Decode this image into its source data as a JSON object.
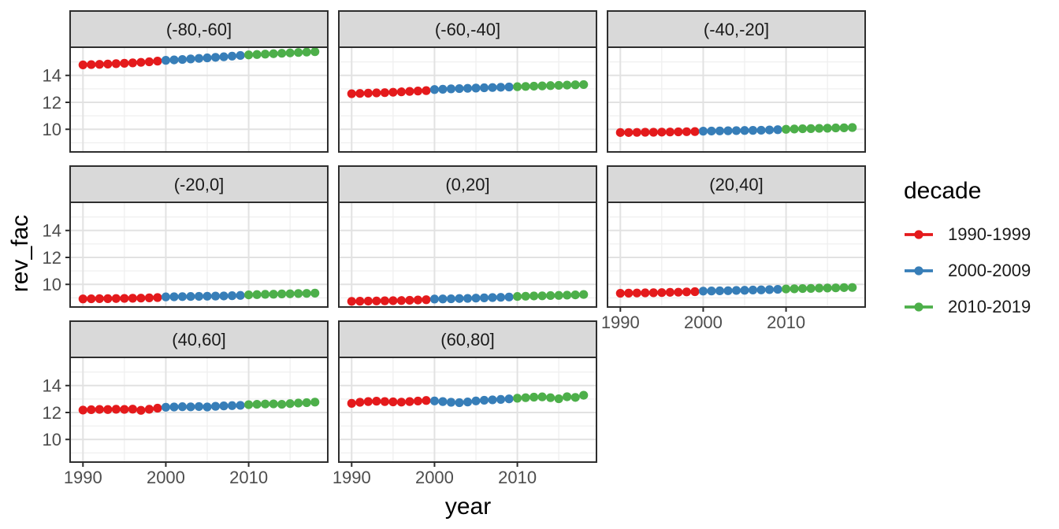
{
  "chart_data": {
    "type": "scatter",
    "title": "",
    "xlabel": "year",
    "ylabel": "rev_fac",
    "x": [
      1990,
      1991,
      1992,
      1993,
      1994,
      1995,
      1996,
      1997,
      1998,
      1999,
      2000,
      2001,
      2002,
      2003,
      2004,
      2005,
      2006,
      2007,
      2008,
      2009,
      2010,
      2011,
      2012,
      2013,
      2014,
      2015,
      2016,
      2017,
      2018
    ],
    "x_ticks": [
      1990,
      2000,
      2010
    ],
    "x_minor_ticks": [
      1995,
      2005,
      2015
    ],
    "y_ticks": [
      10,
      12,
      14
    ],
    "y_minor_ticks": [
      9,
      11,
      13,
      15
    ],
    "xlim": [
      1988.45,
      2019.55
    ],
    "ylim": [
      8.32,
      16.09
    ],
    "grid": "major+minor",
    "legend_position": "right",
    "legend_title": "decade",
    "series": [
      {
        "name": "1990-1999",
        "color": "#E41A1C",
        "from": 1990,
        "to": 1999
      },
      {
        "name": "2000-2009",
        "color": "#377EB8",
        "from": 2000,
        "to": 2009
      },
      {
        "name": "2010-2019",
        "color": "#4DAF4A",
        "from": 2010,
        "to": 2019
      }
    ],
    "facets": [
      {
        "label": "(-80,-60]",
        "values": [
          14.78,
          14.8,
          14.82,
          14.84,
          14.87,
          14.9,
          14.93,
          14.97,
          15.01,
          15.06,
          15.12,
          15.15,
          15.18,
          15.22,
          15.26,
          15.3,
          15.34,
          15.38,
          15.43,
          15.48,
          15.52,
          15.55,
          15.58,
          15.61,
          15.64,
          15.67,
          15.7,
          15.73,
          15.76
        ]
      },
      {
        "label": "(-60,-40]",
        "values": [
          12.64,
          12.66,
          12.68,
          12.7,
          12.72,
          12.75,
          12.78,
          12.81,
          12.84,
          12.87,
          12.95,
          12.97,
          13.0,
          13.02,
          13.04,
          13.06,
          13.08,
          13.1,
          13.12,
          13.14,
          13.16,
          13.18,
          13.2,
          13.22,
          13.24,
          13.26,
          13.28,
          13.3,
          13.32
        ]
      },
      {
        "label": "(-40,-20]",
        "values": [
          9.76,
          9.76,
          9.77,
          9.78,
          9.78,
          9.79,
          9.8,
          9.81,
          9.82,
          9.83,
          9.86,
          9.87,
          9.88,
          9.89,
          9.9,
          9.91,
          9.92,
          9.93,
          9.95,
          9.97,
          10.0,
          10.02,
          10.04,
          10.05,
          10.07,
          10.08,
          10.1,
          10.11,
          10.13
        ]
      },
      {
        "label": "(-20,0]",
        "values": [
          8.92,
          8.93,
          8.94,
          8.94,
          8.95,
          8.96,
          8.97,
          8.98,
          9.0,
          9.02,
          9.07,
          9.08,
          9.09,
          9.1,
          9.11,
          9.12,
          9.13,
          9.14,
          9.16,
          9.18,
          9.22,
          9.24,
          9.26,
          9.27,
          9.29,
          9.3,
          9.32,
          9.33,
          9.35
        ]
      },
      {
        "label": "(0,20]",
        "values": [
          8.74,
          8.75,
          8.76,
          8.77,
          8.78,
          8.79,
          8.8,
          8.82,
          8.84,
          8.86,
          8.91,
          8.92,
          8.93,
          8.95,
          8.96,
          8.98,
          9.0,
          9.02,
          9.04,
          9.06,
          9.1,
          9.12,
          9.14,
          9.15,
          9.17,
          9.18,
          9.2,
          9.22,
          9.25
        ]
      },
      {
        "label": "(20,40]",
        "values": [
          9.34,
          9.35,
          9.36,
          9.37,
          9.38,
          9.39,
          9.41,
          9.42,
          9.44,
          9.46,
          9.5,
          9.51,
          9.52,
          9.53,
          9.55,
          9.56,
          9.58,
          9.59,
          9.61,
          9.63,
          9.66,
          9.67,
          9.69,
          9.7,
          9.72,
          9.73,
          9.74,
          9.76,
          9.77
        ]
      },
      {
        "label": "(40,60]",
        "values": [
          12.18,
          12.21,
          12.23,
          12.22,
          12.24,
          12.23,
          12.25,
          12.16,
          12.24,
          12.32,
          12.39,
          12.41,
          12.43,
          12.42,
          12.44,
          12.41,
          12.46,
          12.49,
          12.51,
          12.53,
          12.58,
          12.61,
          12.63,
          12.64,
          12.61,
          12.66,
          12.7,
          12.73,
          12.77
        ]
      },
      {
        "label": "(60,80]",
        "values": [
          12.68,
          12.76,
          12.81,
          12.84,
          12.81,
          12.79,
          12.77,
          12.81,
          12.85,
          12.89,
          12.86,
          12.81,
          12.76,
          12.73,
          12.78,
          12.86,
          12.91,
          12.94,
          12.97,
          13.01,
          13.06,
          13.1,
          13.14,
          13.16,
          13.1,
          13.02,
          13.17,
          13.12,
          13.28
        ]
      }
    ],
    "style": {
      "strip_fill": "#D9D9D9",
      "panel_border": "#2E2E2E",
      "grid_major": "#E2E2E2",
      "grid_minor": "#EFEFEF",
      "tick_label_color": "#4D4D4D",
      "strip_text_color": "#1A1A1A"
    }
  }
}
